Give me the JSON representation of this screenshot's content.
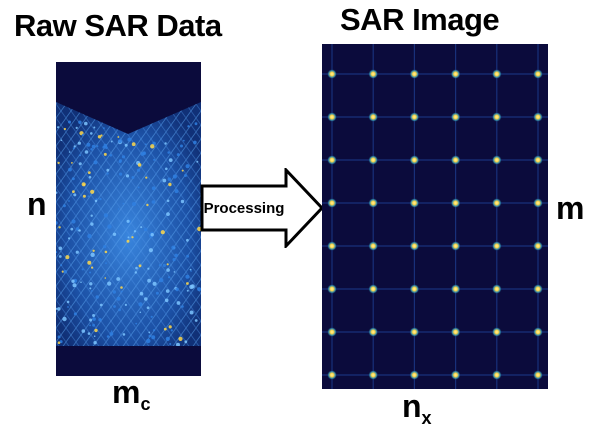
{
  "raw_panel": {
    "title": "Raw SAR Data",
    "row_axis_label": "n",
    "col_axis_label": "m",
    "col_axis_subscript": "c"
  },
  "image_panel": {
    "title": "SAR Image",
    "row_axis_label": "m",
    "col_axis_label": "n",
    "col_axis_subscript": "x",
    "point_target_grid": {
      "rows": 8,
      "cols": 6
    }
  },
  "arrow": {
    "label": "Processing"
  },
  "colors": {
    "background_dark": "#0b0b3c",
    "signal_blue": "#2a6fd6",
    "hot_point": "#ffd84a"
  }
}
